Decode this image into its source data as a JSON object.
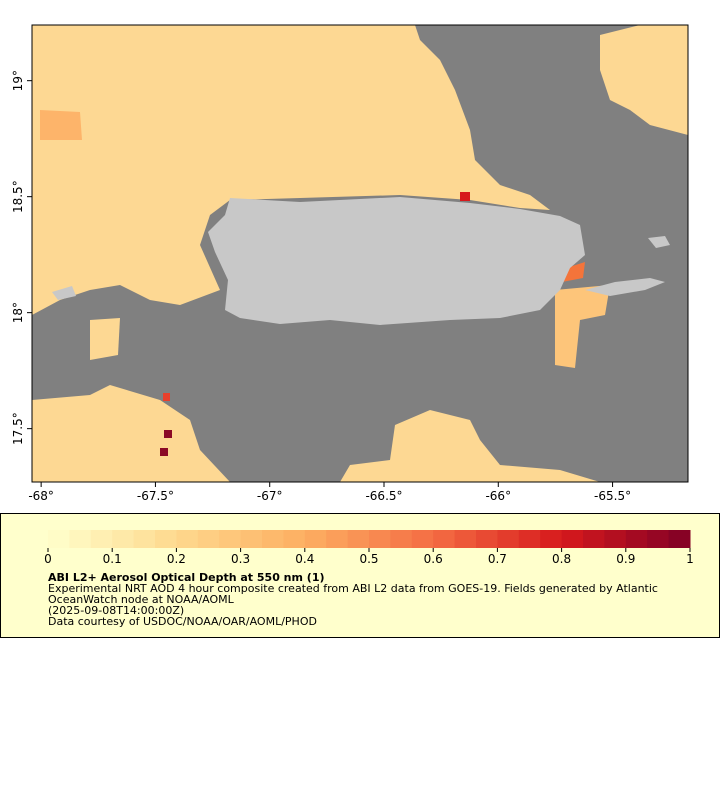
{
  "map": {
    "xlim": [
      -68.04,
      -65.17
    ],
    "ylim": [
      17.27,
      19.24
    ],
    "xticks": [
      {
        "value": -68,
        "label": "-68°"
      },
      {
        "value": -67.5,
        "label": "-67.5°"
      },
      {
        "value": -67,
        "label": "-67°"
      },
      {
        "value": -66.5,
        "label": "-66.5°"
      },
      {
        "value": -66,
        "label": "-66°"
      },
      {
        "value": -65.5,
        "label": "-65.5°"
      }
    ],
    "yticks": [
      {
        "value": 17.5,
        "label": "17.5°"
      },
      {
        "value": 18,
        "label": "18°"
      },
      {
        "value": 18.5,
        "label": "18.5°"
      },
      {
        "value": 19,
        "label": "19°"
      }
    ]
  },
  "legend": {
    "colorbar": {
      "lim": [
        0,
        1
      ],
      "ticks": [
        0,
        0.1,
        0.2,
        0.3,
        0.4,
        0.5,
        0.6,
        0.7,
        0.8,
        0.9,
        1
      ]
    },
    "title": "ABI L2+ Aerosol Optical Depth at 550 nm (1)",
    "description": "Experimental NRT AOD 4 hour composite created from ABI L2 data from GOES-19. Fields generated by Atlantic OceanWatch node at NOAA/AOML",
    "date": "(2025-09-08T14:00:00Z)",
    "credit": "Data courtesy of USDOC/NOAA/OAR/AOML/PHOD"
  }
}
